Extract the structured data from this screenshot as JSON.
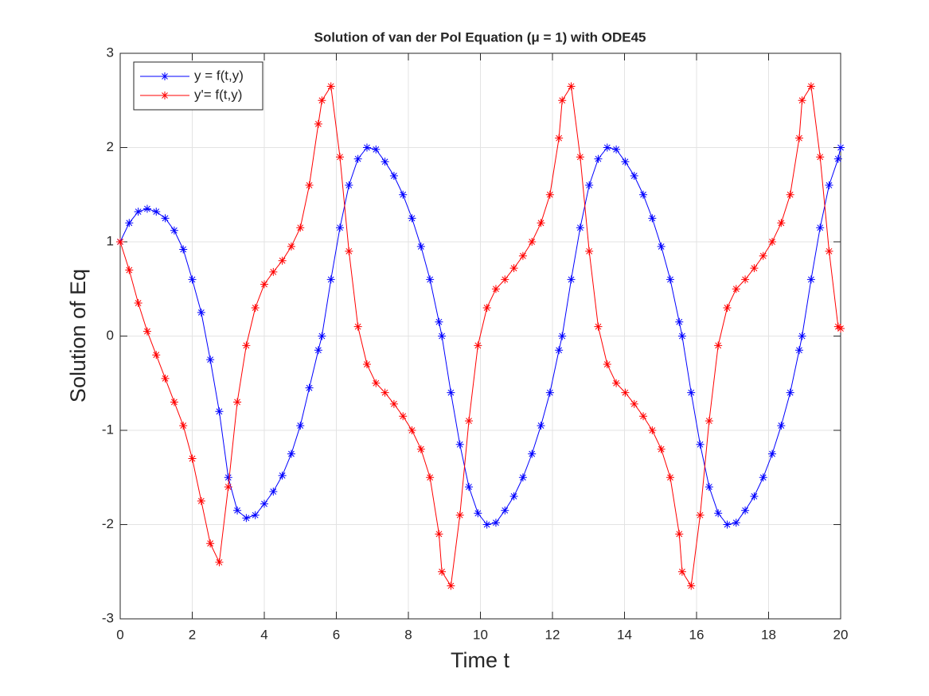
{
  "chart_data": {
    "type": "line",
    "title": "Solution of van der Pol Equation (μ = 1) with ODE45",
    "xlabel": "Time t",
    "ylabel": "Solution of Eq",
    "x": [
      0,
      0.25,
      0.5,
      0.75,
      1,
      1.25,
      1.5,
      1.75,
      2,
      2.25,
      2.5,
      2.75,
      3,
      3.25,
      3.5,
      3.75,
      4,
      4.25,
      4.5,
      4.75,
      5,
      5.25,
      5.5,
      5.6,
      5.85,
      6.1,
      6.35,
      6.6,
      6.85,
      7.1,
      7.35,
      7.6,
      7.85,
      8.1,
      8.35,
      8.6,
      8.85,
      8.93,
      9.18,
      9.43,
      9.68,
      9.93,
      10.18,
      10.43,
      10.68,
      10.93,
      11.18,
      11.43,
      11.68,
      11.93,
      12.18,
      12.27,
      12.52,
      12.77,
      13.02,
      13.27,
      13.52,
      13.77,
      14.02,
      14.27,
      14.52,
      14.77,
      15.02,
      15.27,
      15.52,
      15.6,
      15.85,
      16.1,
      16.35,
      16.6,
      16.85,
      17.1,
      17.35,
      17.6,
      17.85,
      18.1,
      18.35,
      18.6,
      18.85,
      18.93,
      19.18,
      19.43,
      19.68,
      19.93,
      20
    ],
    "series": [
      {
        "name": "y = f(t,y)",
        "color": "#0000ff",
        "values": [
          1,
          1.2,
          1.32,
          1.35,
          1.32,
          1.25,
          1.12,
          0.92,
          0.6,
          0.25,
          -0.25,
          -0.8,
          -1.5,
          -1.85,
          -1.93,
          -1.9,
          -1.78,
          -1.65,
          -1.48,
          -1.25,
          -0.95,
          -0.55,
          -0.15,
          0,
          0.6,
          1.15,
          1.6,
          1.88,
          2,
          1.98,
          1.85,
          1.7,
          1.5,
          1.25,
          0.95,
          0.6,
          0.15,
          0,
          -0.6,
          -1.15,
          -1.6,
          -1.88,
          -2,
          -1.98,
          -1.85,
          -1.7,
          -1.5,
          -1.25,
          -0.95,
          -0.6,
          -0.15,
          0,
          0.6,
          1.15,
          1.6,
          1.88,
          2,
          1.98,
          1.85,
          1.7,
          1.5,
          1.25,
          0.95,
          0.6,
          0.15,
          0,
          -0.6,
          -1.15,
          -1.6,
          -1.88,
          -2,
          -1.98,
          -1.85,
          -1.7,
          -1.5,
          -1.25,
          -0.95,
          -0.6,
          -0.15,
          0,
          0.6,
          1.15,
          1.6,
          1.88,
          2
        ]
      },
      {
        "name": "y'= f(t,y)",
        "color": "#ff0000",
        "values": [
          1,
          0.7,
          0.35,
          0.05,
          -0.2,
          -0.45,
          -0.7,
          -0.95,
          -1.3,
          -1.75,
          -2.2,
          -2.4,
          -1.6,
          -0.7,
          -0.1,
          0.3,
          0.55,
          0.68,
          0.8,
          0.95,
          1.15,
          1.6,
          2.25,
          2.5,
          2.65,
          1.9,
          0.9,
          0.1,
          -0.3,
          -0.5,
          -0.6,
          -0.72,
          -0.85,
          -1,
          -1.2,
          -1.5,
          -2.1,
          -2.5,
          -2.65,
          -1.9,
          -0.9,
          -0.1,
          0.3,
          0.5,
          0.6,
          0.72,
          0.85,
          1,
          1.2,
          1.5,
          2.1,
          2.5,
          2.65,
          1.9,
          0.9,
          0.1,
          -0.3,
          -0.5,
          -0.6,
          -0.72,
          -0.85,
          -1,
          -1.2,
          -1.5,
          -2.1,
          -2.5,
          -2.65,
          -1.9,
          -0.9,
          -0.1,
          0.3,
          0.5,
          0.6,
          0.72,
          0.85,
          1,
          1.2,
          1.5,
          2.1,
          2.5,
          2.65,
          1.9,
          0.9,
          0.1,
          0.08
        ]
      }
    ],
    "marker": "asterisk",
    "xlim": [
      0,
      20
    ],
    "ylim": [
      -3,
      3
    ],
    "xticks": [
      0,
      2,
      4,
      6,
      8,
      10,
      12,
      14,
      16,
      18,
      20
    ],
    "yticks": [
      -3,
      -2,
      -1,
      0,
      1,
      2,
      3
    ],
    "grid": true,
    "legend": "upper left"
  }
}
